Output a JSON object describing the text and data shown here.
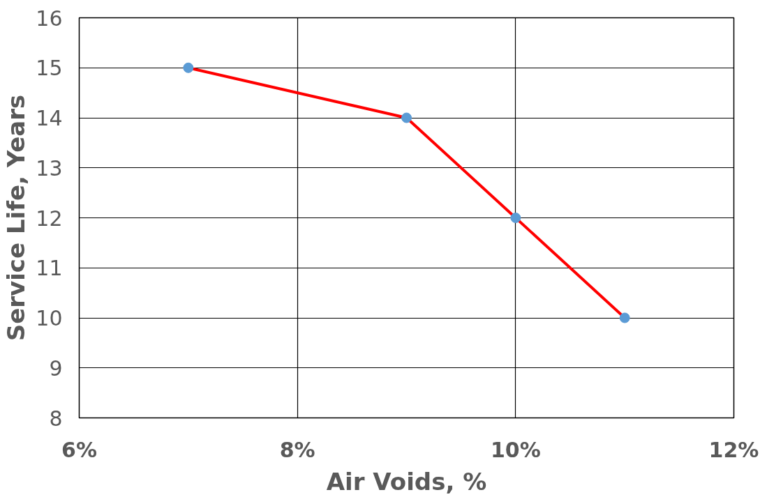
{
  "chart_data": {
    "type": "line",
    "xlabel": "Air Voids, %",
    "ylabel": "Service Life, Years",
    "x": [
      7,
      9,
      10,
      11
    ],
    "series": [
      {
        "color": "#ff0000",
        "values": [
          15,
          14,
          12,
          10
        ],
        "marker": "none"
      },
      {
        "type": "scatter",
        "color": "#5b9bd5",
        "values": [
          15,
          14,
          12,
          10
        ],
        "marker": "circle"
      }
    ],
    "xlim": [
      6,
      12
    ],
    "xticks": [
      {
        "value": 6,
        "label": "6%"
      },
      {
        "value": 8,
        "label": "8%"
      },
      {
        "value": 10,
        "label": "10%"
      },
      {
        "value": 12,
        "label": "12%"
      }
    ],
    "ylim": [
      8,
      16
    ],
    "yticks": [
      8,
      9,
      10,
      11,
      12,
      13,
      14,
      15,
      16
    ],
    "grid": true
  }
}
